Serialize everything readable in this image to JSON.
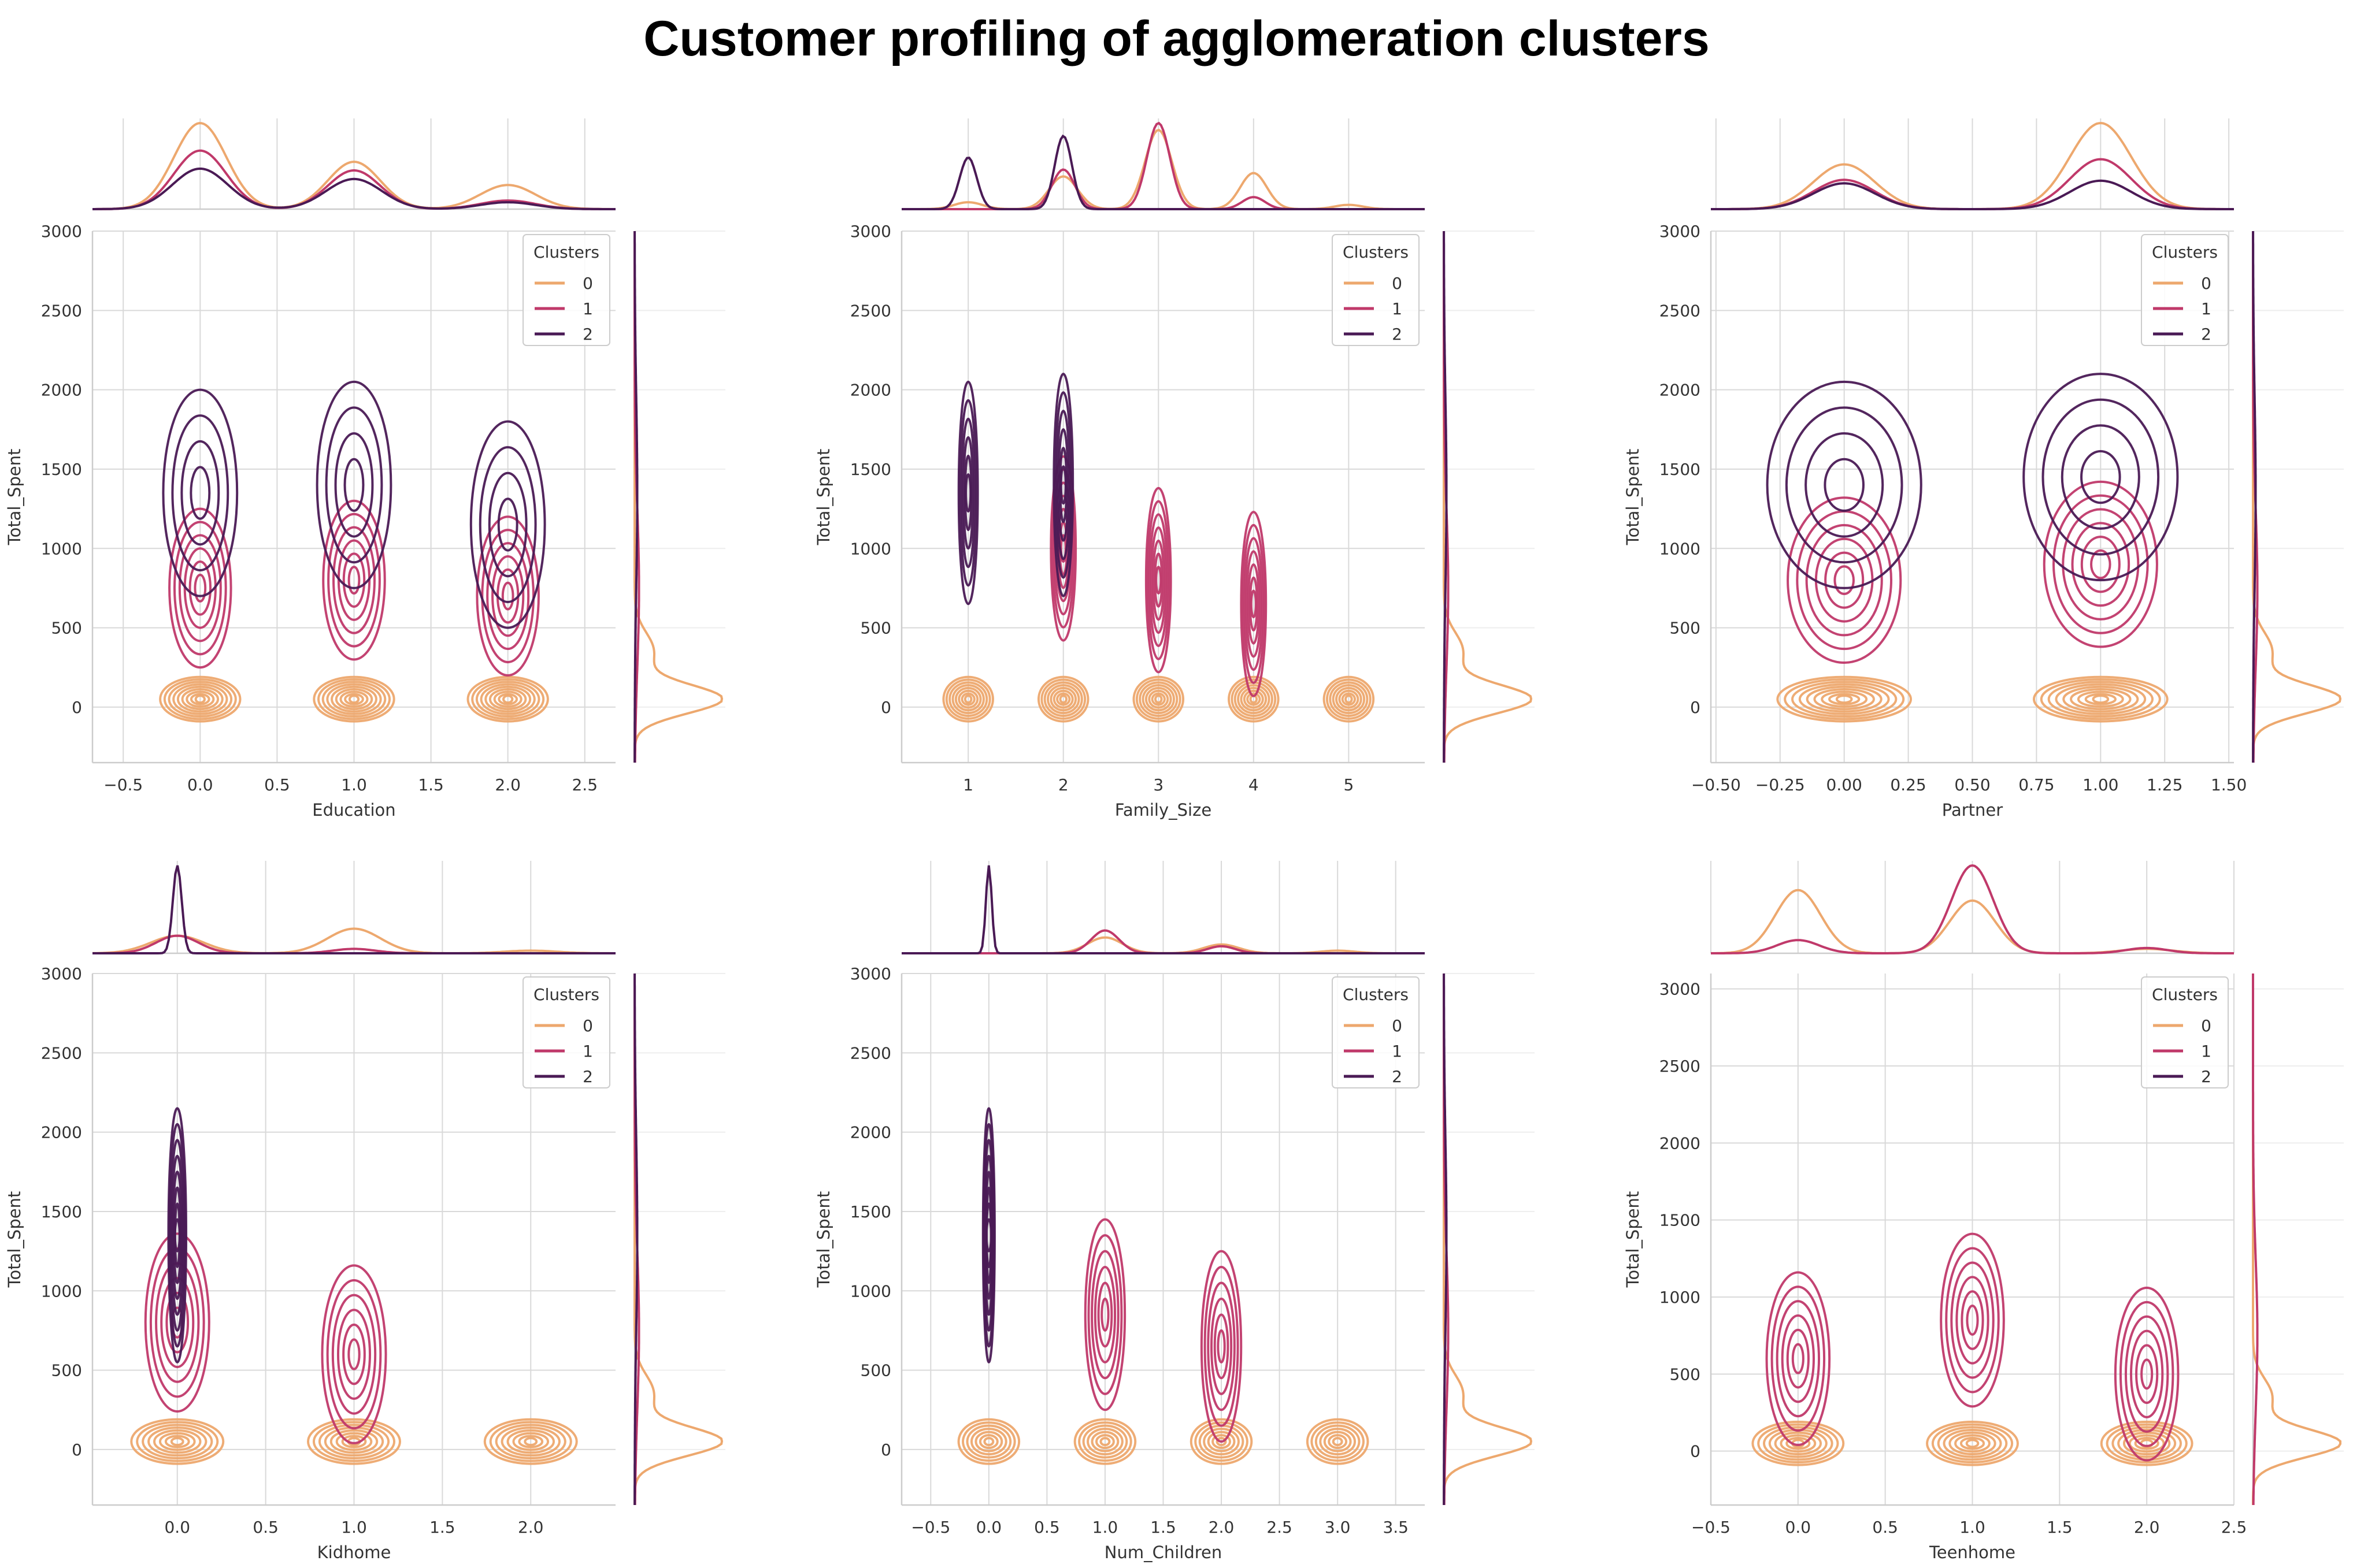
{
  "title": "Customer profiling of agglomeration clusters",
  "colors": {
    "cluster_0": "#eda86e",
    "cluster_1": "#c0396a",
    "cluster_2": "#4a1a55"
  },
  "chart_data": [
    {
      "type": "kde-joint",
      "xlabel": "Education",
      "ylabel": "Total_Spent",
      "xlim": [
        -0.7,
        2.7
      ],
      "ylim": [
        -350,
        3000
      ],
      "xticks": [
        -0.5,
        0.0,
        0.5,
        1.0,
        1.5,
        2.0,
        2.5
      ],
      "xtick_labels": [
        "−0.5",
        "0.0",
        "0.5",
        "1.0",
        "1.5",
        "2.0",
        "2.5"
      ],
      "yticks": [
        0,
        500,
        1000,
        1500,
        2000,
        2500,
        3000
      ],
      "legend": {
        "title": "Clusters",
        "entries": [
          "0",
          "1",
          "2"
        ],
        "position": "top-right"
      },
      "series": [
        {
          "name": "0",
          "peaks": [
            {
              "x": 0,
              "y": 50
            },
            {
              "x": 1,
              "y": 50
            },
            {
              "x": 2,
              "y": 50
            }
          ],
          "levels": 9,
          "marginal_x": [
            {
              "x": 0,
              "h": 1.0,
              "w": 0.17
            },
            {
              "x": 1,
              "h": 0.55,
              "w": 0.17
            },
            {
              "x": 2,
              "h": 0.28,
              "w": 0.18
            }
          ]
        },
        {
          "name": "1",
          "peaks": [
            {
              "x": 0,
              "y": 750
            },
            {
              "x": 1,
              "y": 800
            },
            {
              "x": 2,
              "y": 700
            }
          ],
          "levels": 6,
          "marginal_x": [
            {
              "x": 0,
              "h": 0.68,
              "w": 0.17
            },
            {
              "x": 1,
              "h": 0.45,
              "w": 0.17
            },
            {
              "x": 2,
              "h": 0.1,
              "w": 0.18
            }
          ]
        },
        {
          "name": "2",
          "peaks": [
            {
              "x": 0,
              "y": 1350
            },
            {
              "x": 1,
              "y": 1400
            },
            {
              "x": 2,
              "y": 1150
            }
          ],
          "levels": 4,
          "marginal_x": [
            {
              "x": 0,
              "h": 0.47,
              "w": 0.18
            },
            {
              "x": 1,
              "h": 0.35,
              "w": 0.18
            },
            {
              "x": 2,
              "h": 0.08,
              "w": 0.18
            }
          ]
        }
      ]
    },
    {
      "type": "kde-joint",
      "xlabel": "Family_Size",
      "ylabel": "Total_Spent",
      "xlim": [
        0.3,
        5.8
      ],
      "ylim": [
        -350,
        3000
      ],
      "xticks": [
        1,
        2,
        3,
        4,
        5
      ],
      "xtick_labels": [
        "1",
        "2",
        "3",
        "4",
        "5"
      ],
      "yticks": [
        0,
        500,
        1000,
        1500,
        2000,
        2500,
        3000
      ],
      "legend": {
        "title": "Clusters",
        "entries": [
          "0",
          "1",
          "2"
        ],
        "position": "top-right"
      },
      "series": [
        {
          "name": "0",
          "peaks": [
            {
              "x": 1,
              "y": 50
            },
            {
              "x": 2,
              "y": 50
            },
            {
              "x": 3,
              "y": 50
            },
            {
              "x": 4,
              "y": 50
            },
            {
              "x": 5,
              "y": 50
            }
          ],
          "levels": 8,
          "marginal_x": [
            {
              "x": 1,
              "h": 0.08,
              "w": 0.15
            },
            {
              "x": 2,
              "h": 0.38,
              "w": 0.15
            },
            {
              "x": 3,
              "h": 0.92,
              "w": 0.14
            },
            {
              "x": 4,
              "h": 0.42,
              "w": 0.14
            },
            {
              "x": 5,
              "h": 0.05,
              "w": 0.15
            }
          ]
        },
        {
          "name": "1",
          "peaks": [
            {
              "x": 2,
              "y": 1000
            },
            {
              "x": 3,
              "y": 800
            },
            {
              "x": 4,
              "y": 650
            }
          ],
          "levels": 7,
          "marginal_x": [
            {
              "x": 2,
              "h": 0.46,
              "w": 0.12
            },
            {
              "x": 3,
              "h": 1.0,
              "w": 0.12
            },
            {
              "x": 4,
              "h": 0.14,
              "w": 0.12
            }
          ]
        },
        {
          "name": "2",
          "peaks": [
            {
              "x": 1,
              "y": 1350
            },
            {
              "x": 2,
              "y": 1400
            }
          ],
          "levels": 6,
          "marginal_x": [
            {
              "x": 1,
              "h": 0.6,
              "w": 0.09
            },
            {
              "x": 2,
              "h": 0.85,
              "w": 0.09
            }
          ]
        }
      ]
    },
    {
      "type": "kde-joint",
      "xlabel": "Partner",
      "ylabel": "Total_Spent",
      "xlim": [
        -0.52,
        1.52
      ],
      "ylim": [
        -350,
        3000
      ],
      "xticks": [
        -0.5,
        -0.25,
        0.0,
        0.25,
        0.5,
        0.75,
        1.0,
        1.25,
        1.5
      ],
      "xtick_labels": [
        "−0.50",
        "−0.25",
        "0.00",
        "0.25",
        "0.50",
        "0.75",
        "1.00",
        "1.25",
        "1.50"
      ],
      "yticks": [
        0,
        500,
        1000,
        1500,
        2000,
        2500,
        3000
      ],
      "legend": {
        "title": "Clusters",
        "entries": [
          "0",
          "1",
          "2"
        ],
        "position": "top-right"
      },
      "series": [
        {
          "name": "0",
          "peaks": [
            {
              "x": 0,
              "y": 50
            },
            {
              "x": 1,
              "y": 50
            }
          ],
          "levels": 9,
          "marginal_x": [
            {
              "x": 0,
              "h": 0.52,
              "w": 0.12
            },
            {
              "x": 1,
              "h": 1.0,
              "w": 0.12
            }
          ]
        },
        {
          "name": "1",
          "peaks": [
            {
              "x": 0,
              "y": 800
            },
            {
              "x": 1,
              "y": 900
            }
          ],
          "levels": 6,
          "marginal_x": [
            {
              "x": 0,
              "h": 0.34,
              "w": 0.12
            },
            {
              "x": 1,
              "h": 0.58,
              "w": 0.12
            }
          ]
        },
        {
          "name": "2",
          "peaks": [
            {
              "x": 0,
              "y": 1400
            },
            {
              "x": 1,
              "y": 1450
            }
          ],
          "levels": 4,
          "marginal_x": [
            {
              "x": 0,
              "h": 0.3,
              "w": 0.12
            },
            {
              "x": 1,
              "h": 0.33,
              "w": 0.12
            }
          ]
        }
      ]
    },
    {
      "type": "kde-joint",
      "xlabel": "Kidhome",
      "ylabel": "Total_Spent",
      "xlim": [
        -0.48,
        2.48
      ],
      "ylim": [
        -350,
        3000
      ],
      "xticks": [
        0.0,
        0.5,
        1.0,
        1.5,
        2.0
      ],
      "xtick_labels": [
        "0.0",
        "0.5",
        "1.0",
        "1.5",
        "2.0"
      ],
      "yticks": [
        0,
        500,
        1000,
        1500,
        2000,
        2500,
        3000
      ],
      "legend": {
        "title": "Clusters",
        "entries": [
          "0",
          "1",
          "2"
        ],
        "position": "top-right"
      },
      "series": [
        {
          "name": "0",
          "peaks": [
            {
              "x": 0,
              "y": 50
            },
            {
              "x": 1,
              "y": 50
            },
            {
              "x": 2,
              "y": 50
            }
          ],
          "levels": 8,
          "marginal_x": [
            {
              "x": 0,
              "h": 0.2,
              "w": 0.15
            },
            {
              "x": 1,
              "h": 0.28,
              "w": 0.15
            },
            {
              "x": 2,
              "h": 0.03,
              "w": 0.15
            }
          ]
        },
        {
          "name": "1",
          "peaks": [
            {
              "x": 0,
              "y": 800
            },
            {
              "x": 1,
              "y": 600
            }
          ],
          "levels": 6,
          "marginal_x": [
            {
              "x": 0,
              "h": 0.2,
              "w": 0.12
            },
            {
              "x": 1,
              "h": 0.05,
              "w": 0.12
            }
          ]
        },
        {
          "name": "2",
          "peaks": [
            {
              "x": 0,
              "y": 1350
            }
          ],
          "levels": 8,
          "marginal_x": [
            {
              "x": 0,
              "h": 1.0,
              "w": 0.025
            }
          ]
        }
      ]
    },
    {
      "type": "kde-joint",
      "xlabel": "Num_Children",
      "ylabel": "Total_Spent",
      "xlim": [
        -0.75,
        3.75
      ],
      "ylim": [
        -350,
        3000
      ],
      "xticks": [
        -0.5,
        0.0,
        0.5,
        1.0,
        1.5,
        2.0,
        2.5,
        3.0,
        3.5
      ],
      "xtick_labels": [
        "−0.5",
        "0.0",
        "0.5",
        "1.0",
        "1.5",
        "2.0",
        "2.5",
        "3.0",
        "3.5"
      ],
      "yticks": [
        0,
        500,
        1000,
        1500,
        2000,
        2500,
        3000
      ],
      "legend": {
        "title": "Clusters",
        "entries": [
          "0",
          "1",
          "2"
        ],
        "position": "top-right"
      },
      "series": [
        {
          "name": "0",
          "peaks": [
            {
              "x": 0,
              "y": 50
            },
            {
              "x": 1,
              "y": 50
            },
            {
              "x": 2,
              "y": 50
            },
            {
              "x": 3,
              "y": 50
            }
          ],
          "levels": 7,
          "marginal_x": [
            {
              "x": 1,
              "h": 0.18,
              "w": 0.15
            },
            {
              "x": 2,
              "h": 0.1,
              "w": 0.15
            },
            {
              "x": 3,
              "h": 0.03,
              "w": 0.15
            }
          ]
        },
        {
          "name": "1",
          "peaks": [
            {
              "x": 1,
              "y": 850
            },
            {
              "x": 2,
              "y": 650
            }
          ],
          "levels": 6,
          "marginal_x": [
            {
              "x": 1,
              "h": 0.26,
              "w": 0.12
            },
            {
              "x": 2,
              "h": 0.08,
              "w": 0.12
            }
          ]
        },
        {
          "name": "2",
          "peaks": [
            {
              "x": 0,
              "y": 1350
            }
          ],
          "levels": 8,
          "marginal_x": [
            {
              "x": 0,
              "h": 1.0,
              "w": 0.025
            }
          ]
        }
      ]
    },
    {
      "type": "kde-joint",
      "xlabel": "Teenhome",
      "ylabel": "Total_Spent",
      "xlim": [
        -0.5,
        2.5
      ],
      "ylim": [
        -350,
        3100
      ],
      "xticks": [
        -0.5,
        0.0,
        0.5,
        1.0,
        1.5,
        2.0,
        2.5
      ],
      "xtick_labels": [
        "−0.5",
        "0.0",
        "0.5",
        "1.0",
        "1.5",
        "2.0",
        "2.5"
      ],
      "yticks": [
        0,
        500,
        1000,
        1500,
        2000,
        2500,
        3000
      ],
      "legend": {
        "title": "Clusters",
        "entries": [
          "0",
          "1",
          "2"
        ],
        "position": "top-right"
      },
      "series": [
        {
          "name": "0",
          "peaks": [
            {
              "x": 0,
              "y": 50
            },
            {
              "x": 1,
              "y": 50
            },
            {
              "x": 2,
              "y": 50
            }
          ],
          "levels": 8,
          "marginal_x": [
            {
              "x": 0,
              "h": 0.72,
              "w": 0.13
            },
            {
              "x": 1,
              "h": 0.6,
              "w": 0.13
            },
            {
              "x": 2,
              "h": 0.05,
              "w": 0.15
            }
          ]
        },
        {
          "name": "1",
          "peaks": [
            {
              "x": 0,
              "y": 600
            },
            {
              "x": 1,
              "y": 850
            },
            {
              "x": 2,
              "y": 500
            }
          ],
          "levels": 6,
          "marginal_x": [
            {
              "x": 0,
              "h": 0.15,
              "w": 0.12
            },
            {
              "x": 1,
              "h": 1.0,
              "w": 0.12
            },
            {
              "x": 2,
              "h": 0.06,
              "w": 0.12
            }
          ]
        },
        {
          "name": "2",
          "peaks": [],
          "levels": 0,
          "marginal_x": []
        }
      ]
    }
  ]
}
